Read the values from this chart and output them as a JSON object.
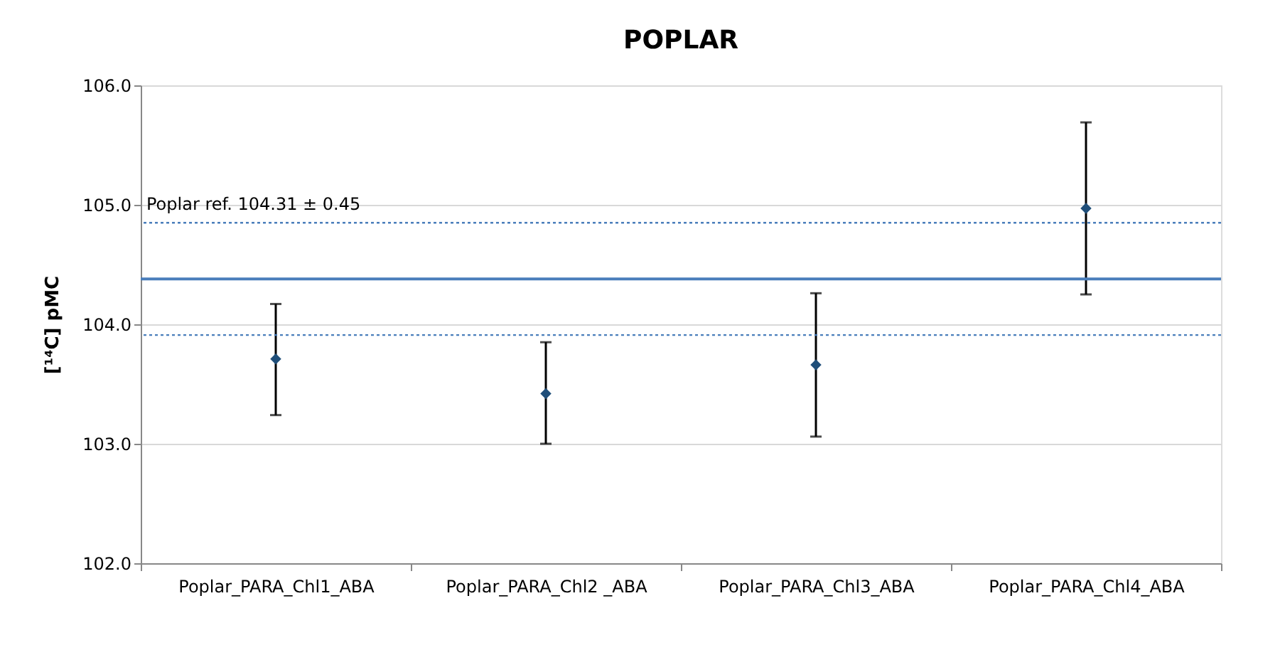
{
  "chart_data": {
    "type": "scatter",
    "title": "POPLAR",
    "ylabel": "[¹⁴C] pMC",
    "categories": [
      "Poplar_PARA_Chl1_ABA",
      "Poplar_PARA_Chl2 _ABA",
      "Poplar_PARA_Chl3_ABA",
      "Poplar_PARA_Chl4_ABA"
    ],
    "series": [
      {
        "color": "#1f4e79",
        "values": [
          103.71,
          103.42,
          103.66,
          104.97
        ],
        "errors": [
          [
            103.24,
            104.17
          ],
          [
            103.0,
            103.85
          ],
          [
            103.06,
            104.26
          ],
          [
            104.25,
            105.69
          ]
        ]
      }
    ],
    "marker": "diamond",
    "ylim": [
      102.0,
      106.0
    ],
    "yticks": [
      {
        "value": 102,
        "label": "102.0"
      },
      {
        "value": 103,
        "label": "103.0"
      },
      {
        "value": 104,
        "label": "104.0"
      },
      {
        "value": 105,
        "label": "105.0"
      },
      {
        "value": 106,
        "label": "106.0"
      }
    ],
    "grid": "y",
    "ref_lines": [
      {
        "axis": "y",
        "value": 104.38,
        "color": "#4a7ebb",
        "line_style": "solid"
      },
      {
        "axis": "y",
        "value": 104.85,
        "label": "Poplar ref. 104.31 ± 0.45",
        "color": "#4a7ebb",
        "line_style": "dotted"
      },
      {
        "axis": "y",
        "value": 103.91,
        "color": "#4a7ebb",
        "line_style": "dotted"
      }
    ]
  }
}
